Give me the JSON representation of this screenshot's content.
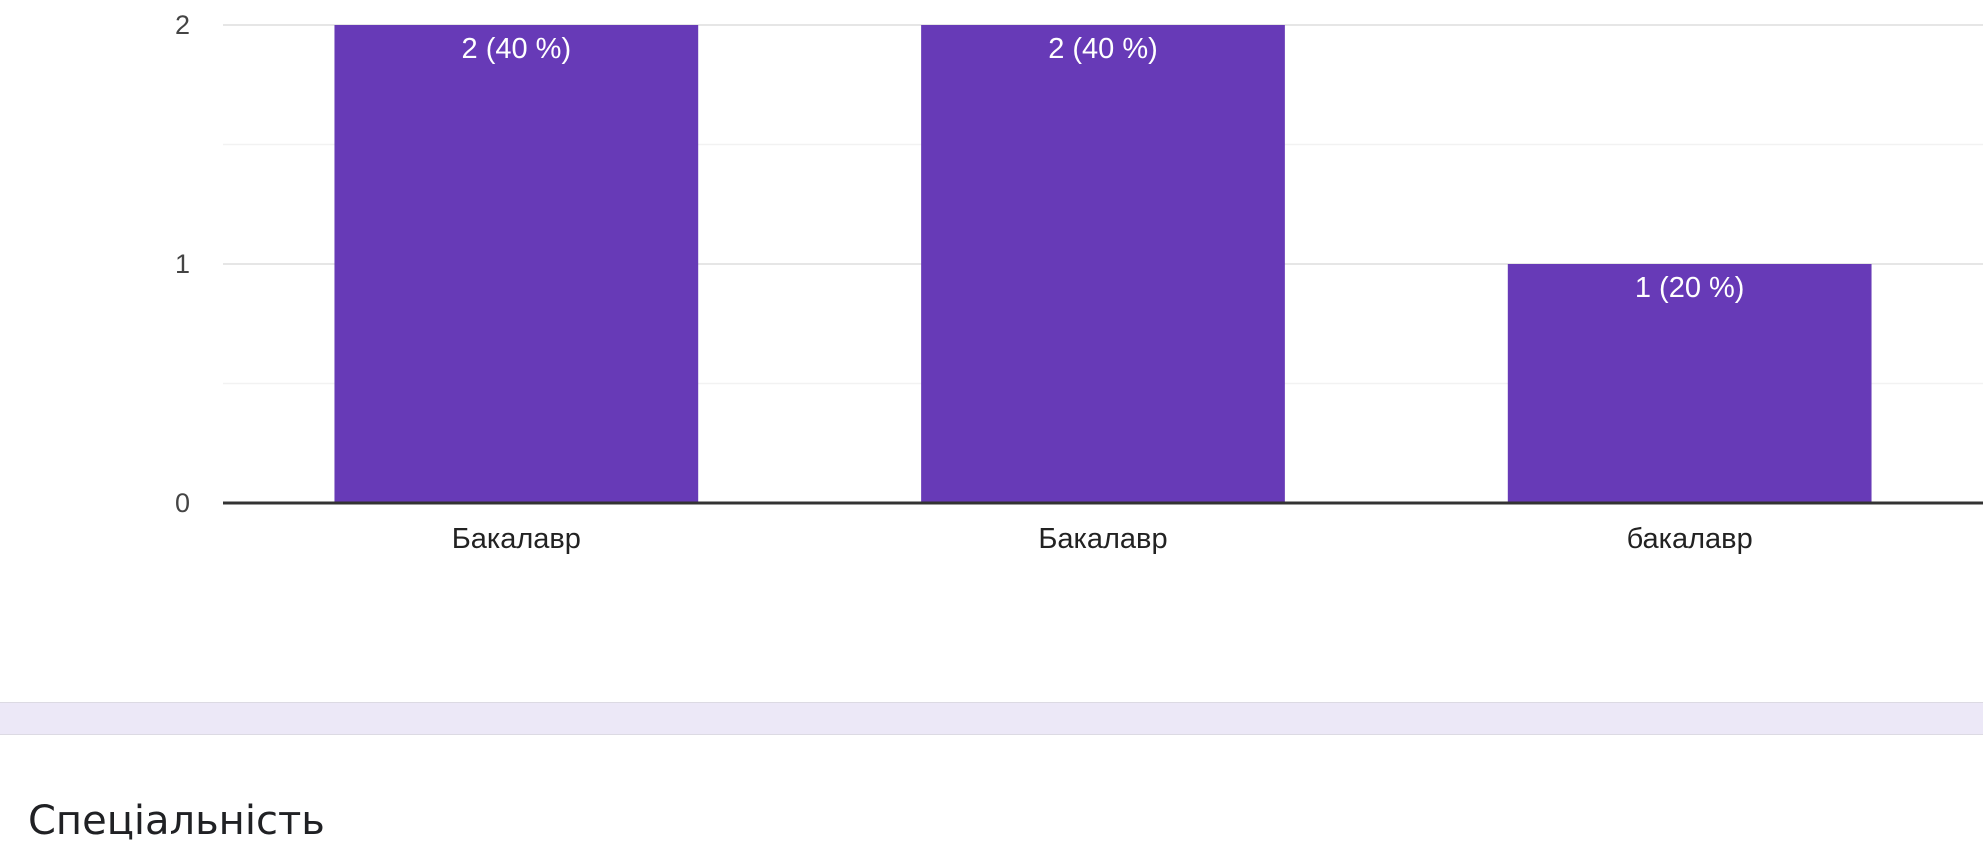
{
  "chart_data": {
    "type": "bar",
    "categories": [
      "Бакалавр",
      "Бакалавр",
      "бакалавр"
    ],
    "values": [
      2,
      2,
      1
    ],
    "data_labels": [
      "2 (40 %)",
      "2 (40 %)",
      "1 (20 %)"
    ],
    "yticks": [
      0,
      1,
      2
    ],
    "ylim": [
      0,
      2
    ],
    "bar_color": "#673ab7",
    "grid": true,
    "title": "",
    "xlabel": "",
    "ylabel": ""
  },
  "next_question": {
    "title": "Спеціальність"
  },
  "colors": {
    "divider_band": "#ece8f7",
    "axis": "#333333",
    "grid": "#e6e6e6"
  }
}
